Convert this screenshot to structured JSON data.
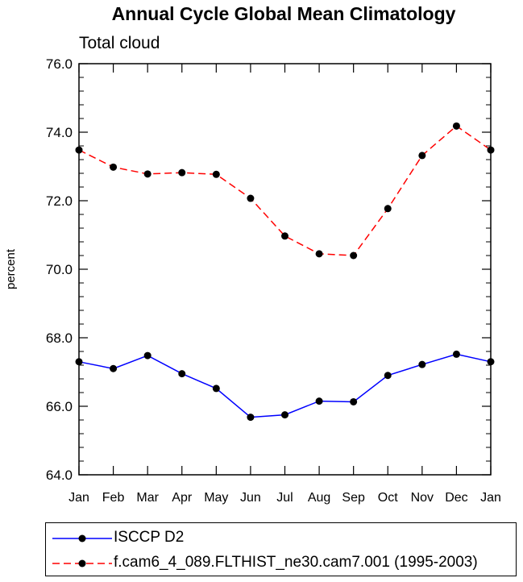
{
  "title": "Annual Cycle Global Mean Climatology",
  "subtitle": "Total cloud",
  "chart_data": {
    "type": "line",
    "title": "Annual Cycle Global Mean Climatology",
    "subtitle": "Total cloud",
    "xlabel": "",
    "ylabel": "percent",
    "categories": [
      "Jan",
      "Feb",
      "Mar",
      "Apr",
      "May",
      "Jun",
      "Jul",
      "Aug",
      "Sep",
      "Oct",
      "Nov",
      "Dec",
      "Jan"
    ],
    "ylim": [
      64.0,
      76.0
    ],
    "yticks": [
      "64.0",
      "66.0",
      "68.0",
      "70.0",
      "72.0",
      "74.0",
      "76.0"
    ],
    "grid": false,
    "legend_position": "bottom",
    "series": [
      {
        "name": "ISCCP D2",
        "color": "#0000ff",
        "line_style": "solid",
        "marker": "circle",
        "values": [
          67.3,
          67.1,
          67.48,
          66.95,
          66.52,
          65.68,
          65.75,
          66.15,
          66.13,
          66.9,
          67.22,
          67.52,
          67.3
        ]
      },
      {
        "name": "f.cam6_4_089.FLTHIST_ne30.cam7.001 (1995-2003)",
        "color": "#ff0000",
        "line_style": "dashed",
        "marker": "circle",
        "values": [
          73.48,
          72.98,
          72.78,
          72.82,
          72.77,
          72.07,
          70.97,
          70.45,
          70.4,
          71.77,
          73.32,
          74.18,
          73.48
        ]
      }
    ]
  }
}
